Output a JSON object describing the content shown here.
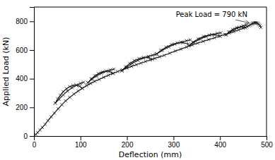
{
  "chart_data": {
    "type": "line",
    "xlabel": "Deflection (mm)",
    "ylabel": "Applied Load (kN)",
    "xlim": [
      0,
      500
    ],
    "ylim": [
      0,
      900
    ],
    "xticks": [
      0,
      100,
      200,
      300,
      400,
      500
    ],
    "yticks": [
      0,
      200,
      400,
      600,
      800
    ],
    "color": "#1a1a1a",
    "marker": "x",
    "grid": false,
    "annotations": [
      {
        "text": "Peak Load = 790 kN",
        "xy": [
          462,
          790
        ],
        "xytext": [
          305,
          845
        ]
      }
    ],
    "series": [
      {
        "x": [
          0,
          4,
          8,
          13,
          18,
          24,
          30,
          37,
          44,
          52,
          60,
          68,
          77,
          86,
          95,
          104,
          113,
          122,
          131,
          140,
          150,
          160,
          170,
          180,
          190,
          200,
          210,
          220,
          230,
          240,
          250,
          260,
          270,
          280,
          292,
          304,
          316,
          328,
          340,
          352,
          364,
          376,
          388,
          400,
          410,
          420,
          430,
          440,
          450,
          458,
          462,
          465,
          468,
          470,
          472,
          474,
          476,
          478,
          480,
          482,
          484,
          486,
          488
        ],
        "values": [
          0,
          12,
          25,
          42,
          60,
          82,
          107,
          134,
          160,
          190,
          218,
          245,
          270,
          293,
          314,
          333,
          351,
          367,
          382,
          395,
          410,
          424,
          437,
          450,
          462,
          474,
          486,
          498,
          509,
          520,
          531,
          542,
          553,
          563,
          578,
          593,
          607,
          621,
          635,
          648,
          661,
          673,
          685,
          697,
          708,
          718,
          729,
          740,
          752,
          763,
          770,
          776,
          781,
          785,
          788,
          790,
          791,
          790,
          788,
          784,
          778,
          770,
          758
        ]
      },
      {
        "x": [
          104,
          98,
          91,
          84,
          77,
          70,
          63,
          57,
          51,
          46
        ],
        "values": [
          333,
          348,
          355,
          353,
          345,
          330,
          310,
          285,
          258,
          230
        ]
      },
      {
        "x": [
          46,
          54,
          63,
          72,
          82,
          91,
          100,
          107
        ],
        "values": [
          230,
          258,
          287,
          314,
          337,
          355,
          367,
          375
        ]
      },
      {
        "x": [
          170,
          163,
          155,
          147,
          139,
          131,
          123,
          116
        ],
        "values": [
          437,
          450,
          453,
          447,
          436,
          420,
          398,
          372
        ]
      },
      {
        "x": [
          116,
          125,
          135,
          145,
          155,
          164,
          172
        ],
        "values": [
          372,
          398,
          420,
          438,
          452,
          461,
          467
        ]
      },
      {
        "x": [
          255,
          246,
          236,
          226,
          216,
          206,
          197,
          189
        ],
        "values": [
          535,
          548,
          548,
          540,
          526,
          507,
          482,
          455
        ]
      },
      {
        "x": [
          189,
          199,
          211,
          223,
          235,
          246,
          255,
          262
        ],
        "values": [
          455,
          480,
          507,
          528,
          544,
          556,
          564,
          570
        ]
      },
      {
        "x": [
          332,
          320,
          308,
          296,
          284,
          273,
          264
        ],
        "values": [
          642,
          652,
          649,
          638,
          620,
          597,
          573
        ]
      },
      {
        "x": [
          264,
          276,
          290,
          303,
          316,
          328,
          336
        ],
        "values": [
          573,
          598,
          622,
          641,
          655,
          665,
          671
        ]
      },
      {
        "x": [
          400,
          389,
          377,
          365,
          353,
          342,
          333
        ],
        "values": [
          697,
          707,
          705,
          695,
          677,
          655,
          630
        ]
      },
      {
        "x": [
          333,
          344,
          357,
          370,
          382,
          394,
          402
        ],
        "values": [
          630,
          654,
          676,
          694,
          707,
          716,
          720
        ]
      },
      {
        "x": [
          455,
          446,
          436,
          427,
          419,
          413
        ],
        "values": [
          755,
          762,
          757,
          744,
          726,
          707
        ]
      },
      {
        "x": [
          413,
          422,
          432,
          441,
          450,
          457
        ],
        "values": [
          707,
          726,
          744,
          758,
          769,
          775
        ]
      }
    ]
  }
}
